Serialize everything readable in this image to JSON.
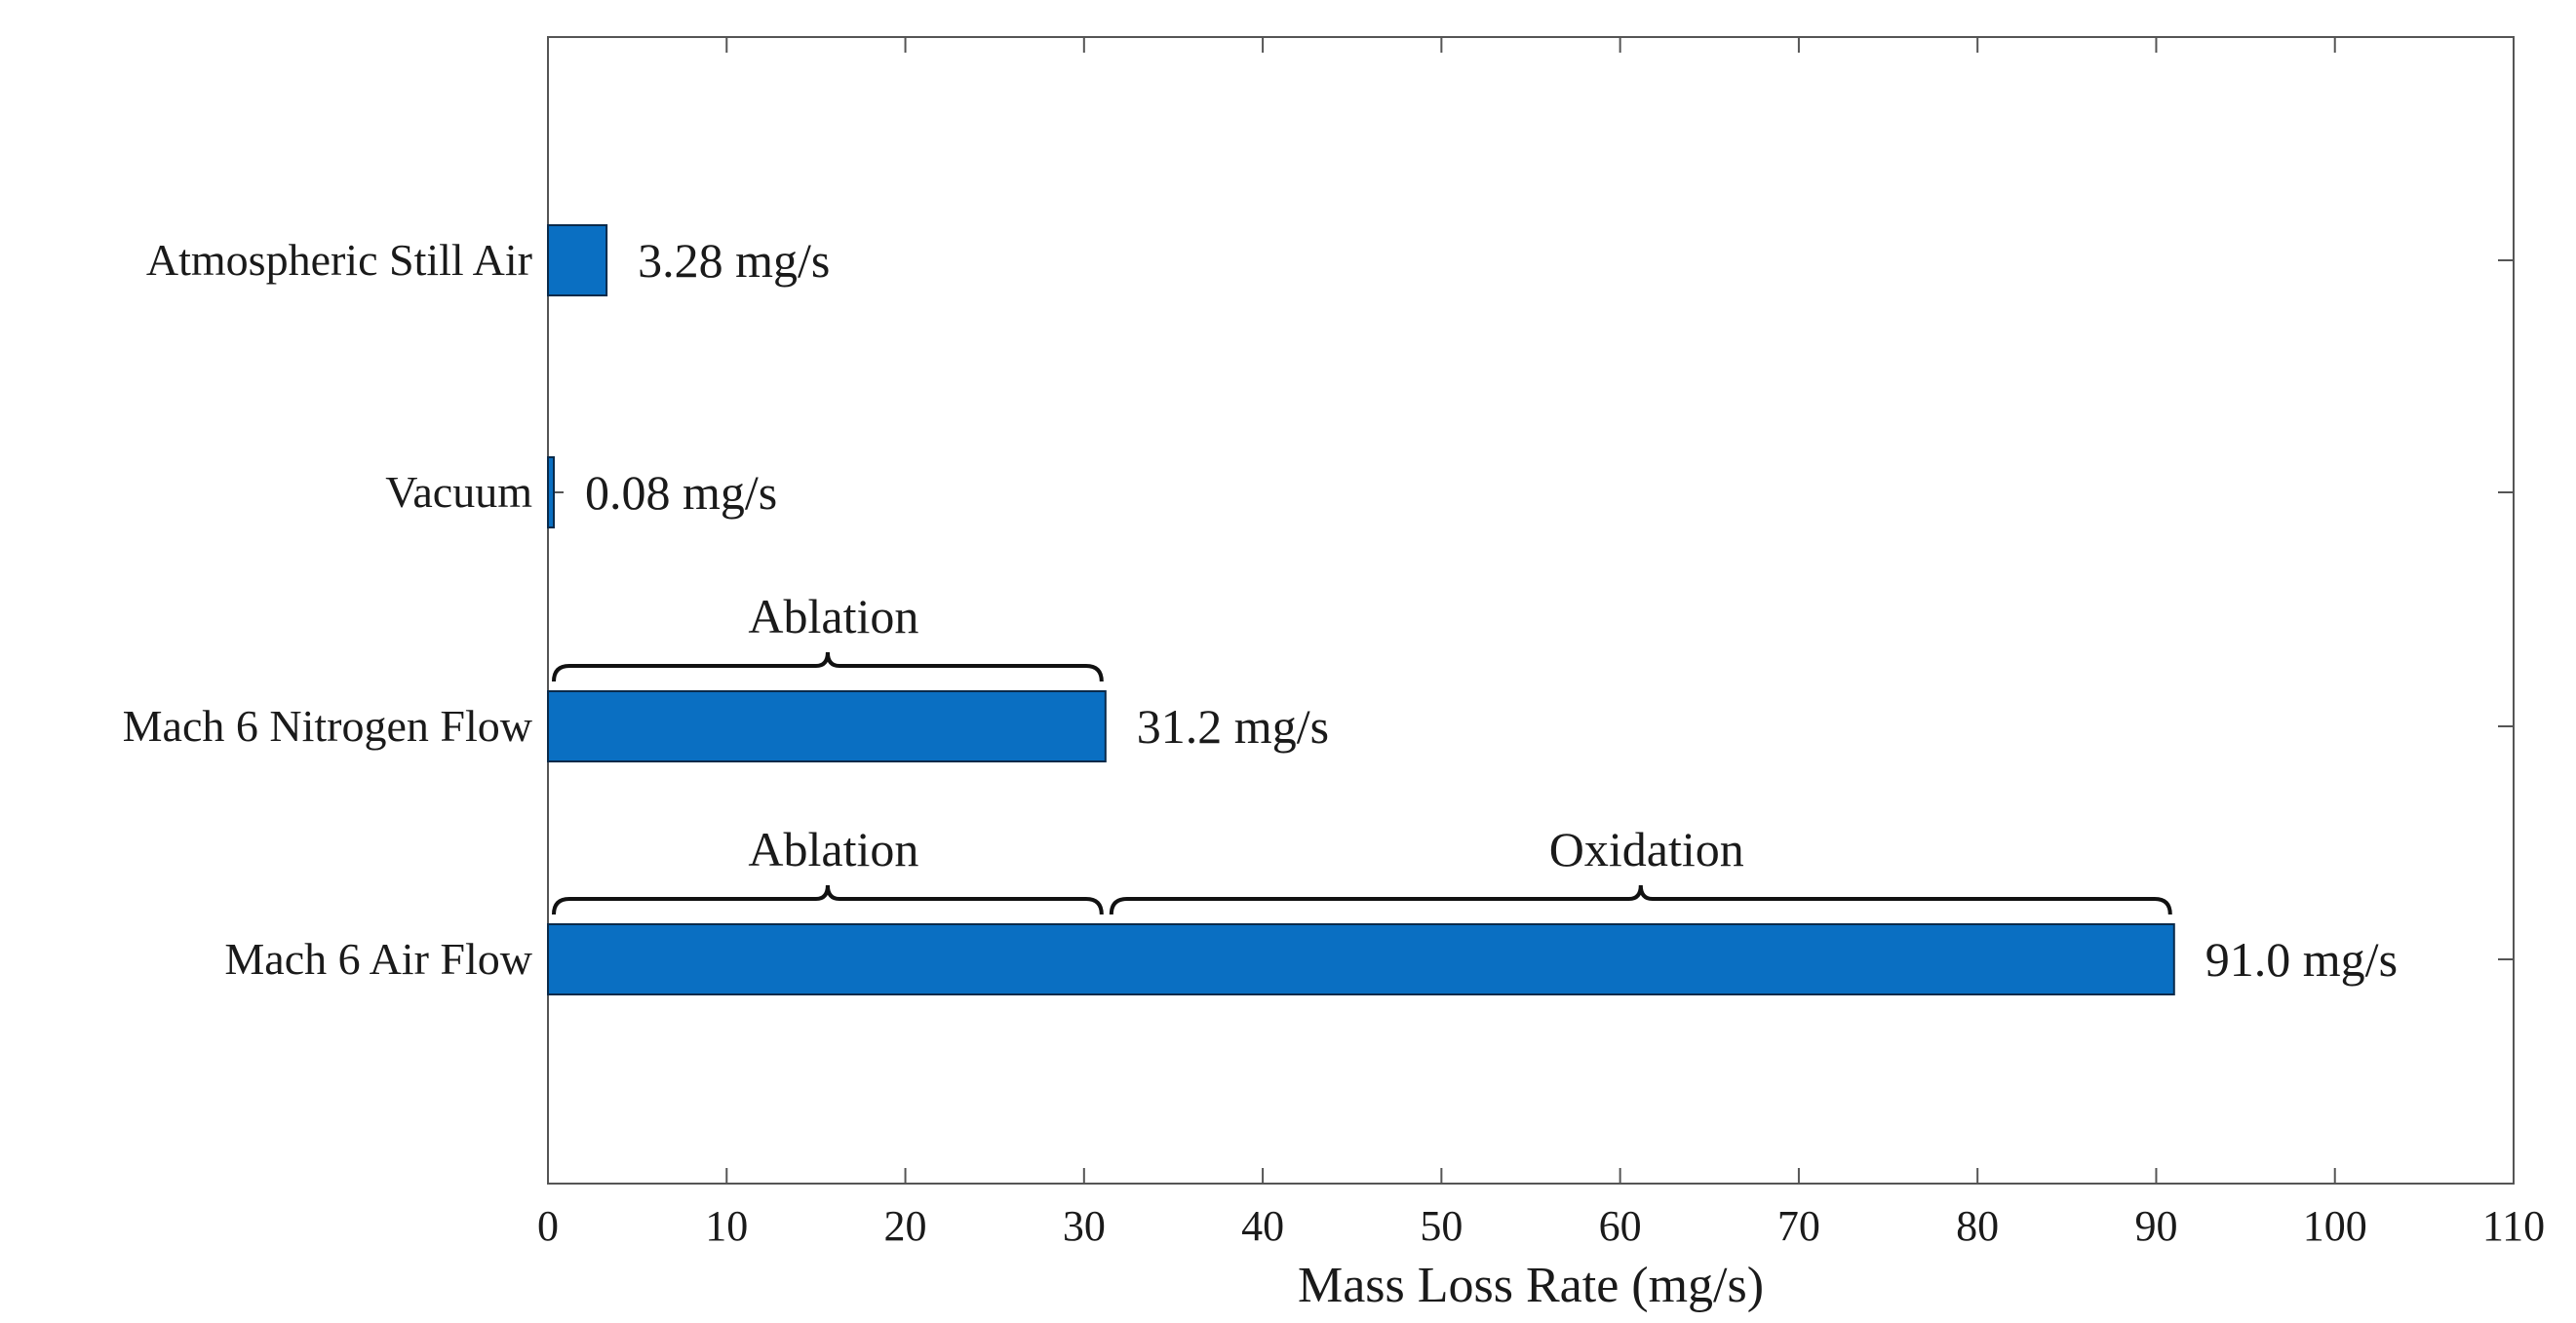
{
  "chart_data": {
    "type": "bar",
    "orientation": "horizontal",
    "categories": [
      "Atmospheric Still Air",
      "Vacuum",
      "Mach 6 Nitrogen Flow",
      "Mach 6 Air Flow"
    ],
    "values": [
      3.28,
      0.08,
      31.2,
      91.0
    ],
    "value_labels": [
      "3.28 mg/s",
      "0.08 mg/s",
      "31.2 mg/s",
      "91.0 mg/s"
    ],
    "xlabel": "Mass Loss Rate (mg/s)",
    "ylabel": "",
    "title": "",
    "xlim": [
      0,
      110
    ],
    "xticks": [
      0,
      10,
      20,
      30,
      40,
      50,
      60,
      70,
      80,
      90,
      100,
      110
    ],
    "xtick_labels": [
      "0",
      "10",
      "20",
      "30",
      "40",
      "50",
      "60",
      "70",
      "80",
      "90",
      "100",
      "110"
    ],
    "bar_color": "#0a6fc2",
    "annotations": [
      {
        "category": "Mach 6 Nitrogen Flow",
        "label": "Ablation",
        "start": 0,
        "end": 31.2
      },
      {
        "category": "Mach 6 Air Flow",
        "label": "Ablation",
        "start": 0,
        "end": 31.2
      },
      {
        "category": "Mach 6 Air Flow",
        "label": "Oxidation",
        "start": 31.2,
        "end": 91.0
      }
    ]
  }
}
